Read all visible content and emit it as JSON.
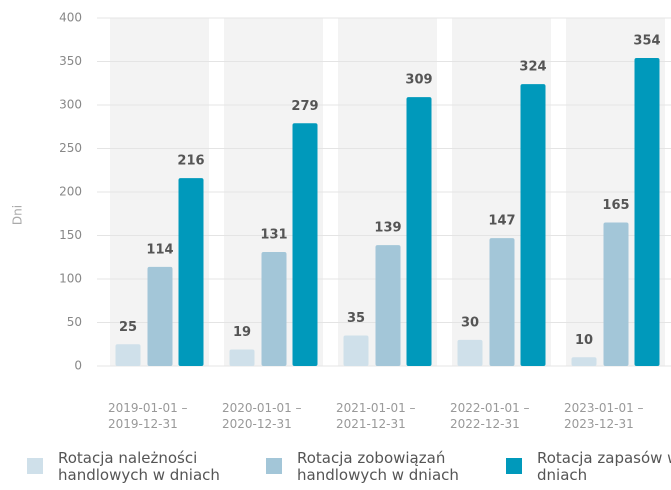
{
  "chart_data": {
    "type": "bar",
    "y_label": "Dni",
    "categories": [
      "2019-01-01 – 2019-12-31",
      "2020-01-01 – 2020-12-31",
      "2021-01-01 – 2021-12-31",
      "2022-01-01 – 2022-12-31",
      "2023-01-01 – 2023-12-31"
    ],
    "series": [
      {
        "name": "Rotacja należności handlowych w dniach",
        "color": "#cfe0ea",
        "values": [
          25,
          19,
          35,
          30,
          10
        ]
      },
      {
        "name": "Rotacja zobowiązań handlowych w dniach",
        "color": "#a3c6d8",
        "values": [
          114,
          131,
          139,
          147,
          165
        ]
      },
      {
        "name": "Rotacja zapasów w dniach",
        "color": "#0099bb",
        "values": [
          216,
          279,
          309,
          324,
          354
        ]
      }
    ],
    "ylim": [
      0,
      400
    ],
    "yticks": [
      0,
      50,
      100,
      150,
      200,
      250,
      300,
      350,
      400
    ],
    "grid": true
  }
}
